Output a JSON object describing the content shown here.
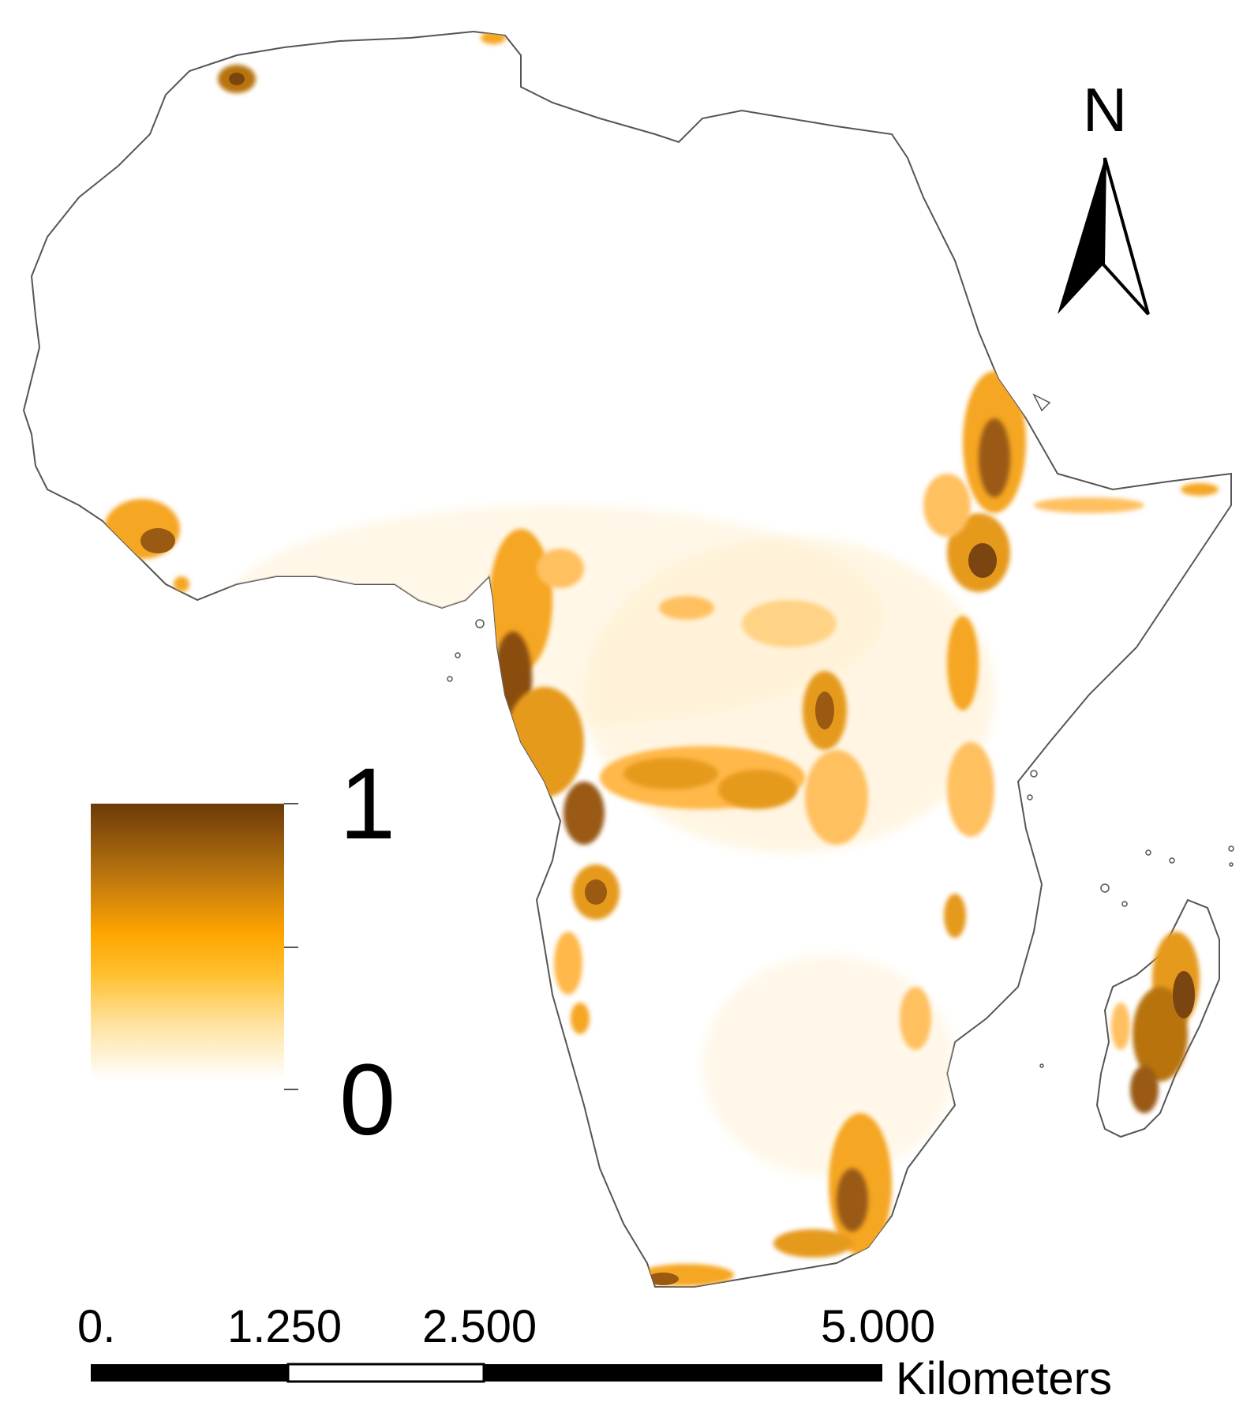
{
  "north_arrow": {
    "label": "N"
  },
  "legend": {
    "max_label": "1",
    "min_label": "0",
    "colors": [
      "#6b3a0a",
      "#b8730f",
      "#ffa500",
      "#ffd36b",
      "#ffffff"
    ]
  },
  "scale_bar": {
    "tick_labels": [
      "0.",
      "1.250",
      "2.500",
      "5.000"
    ],
    "units": "Kilometers"
  },
  "map": {
    "region": "Africa and Madagascar",
    "outline_color": "#555555",
    "fill_color": "#ffffff",
    "hotspot_colors": [
      "#ffe2a8",
      "#f5a623",
      "#c77a12",
      "#7a4510"
    ]
  }
}
